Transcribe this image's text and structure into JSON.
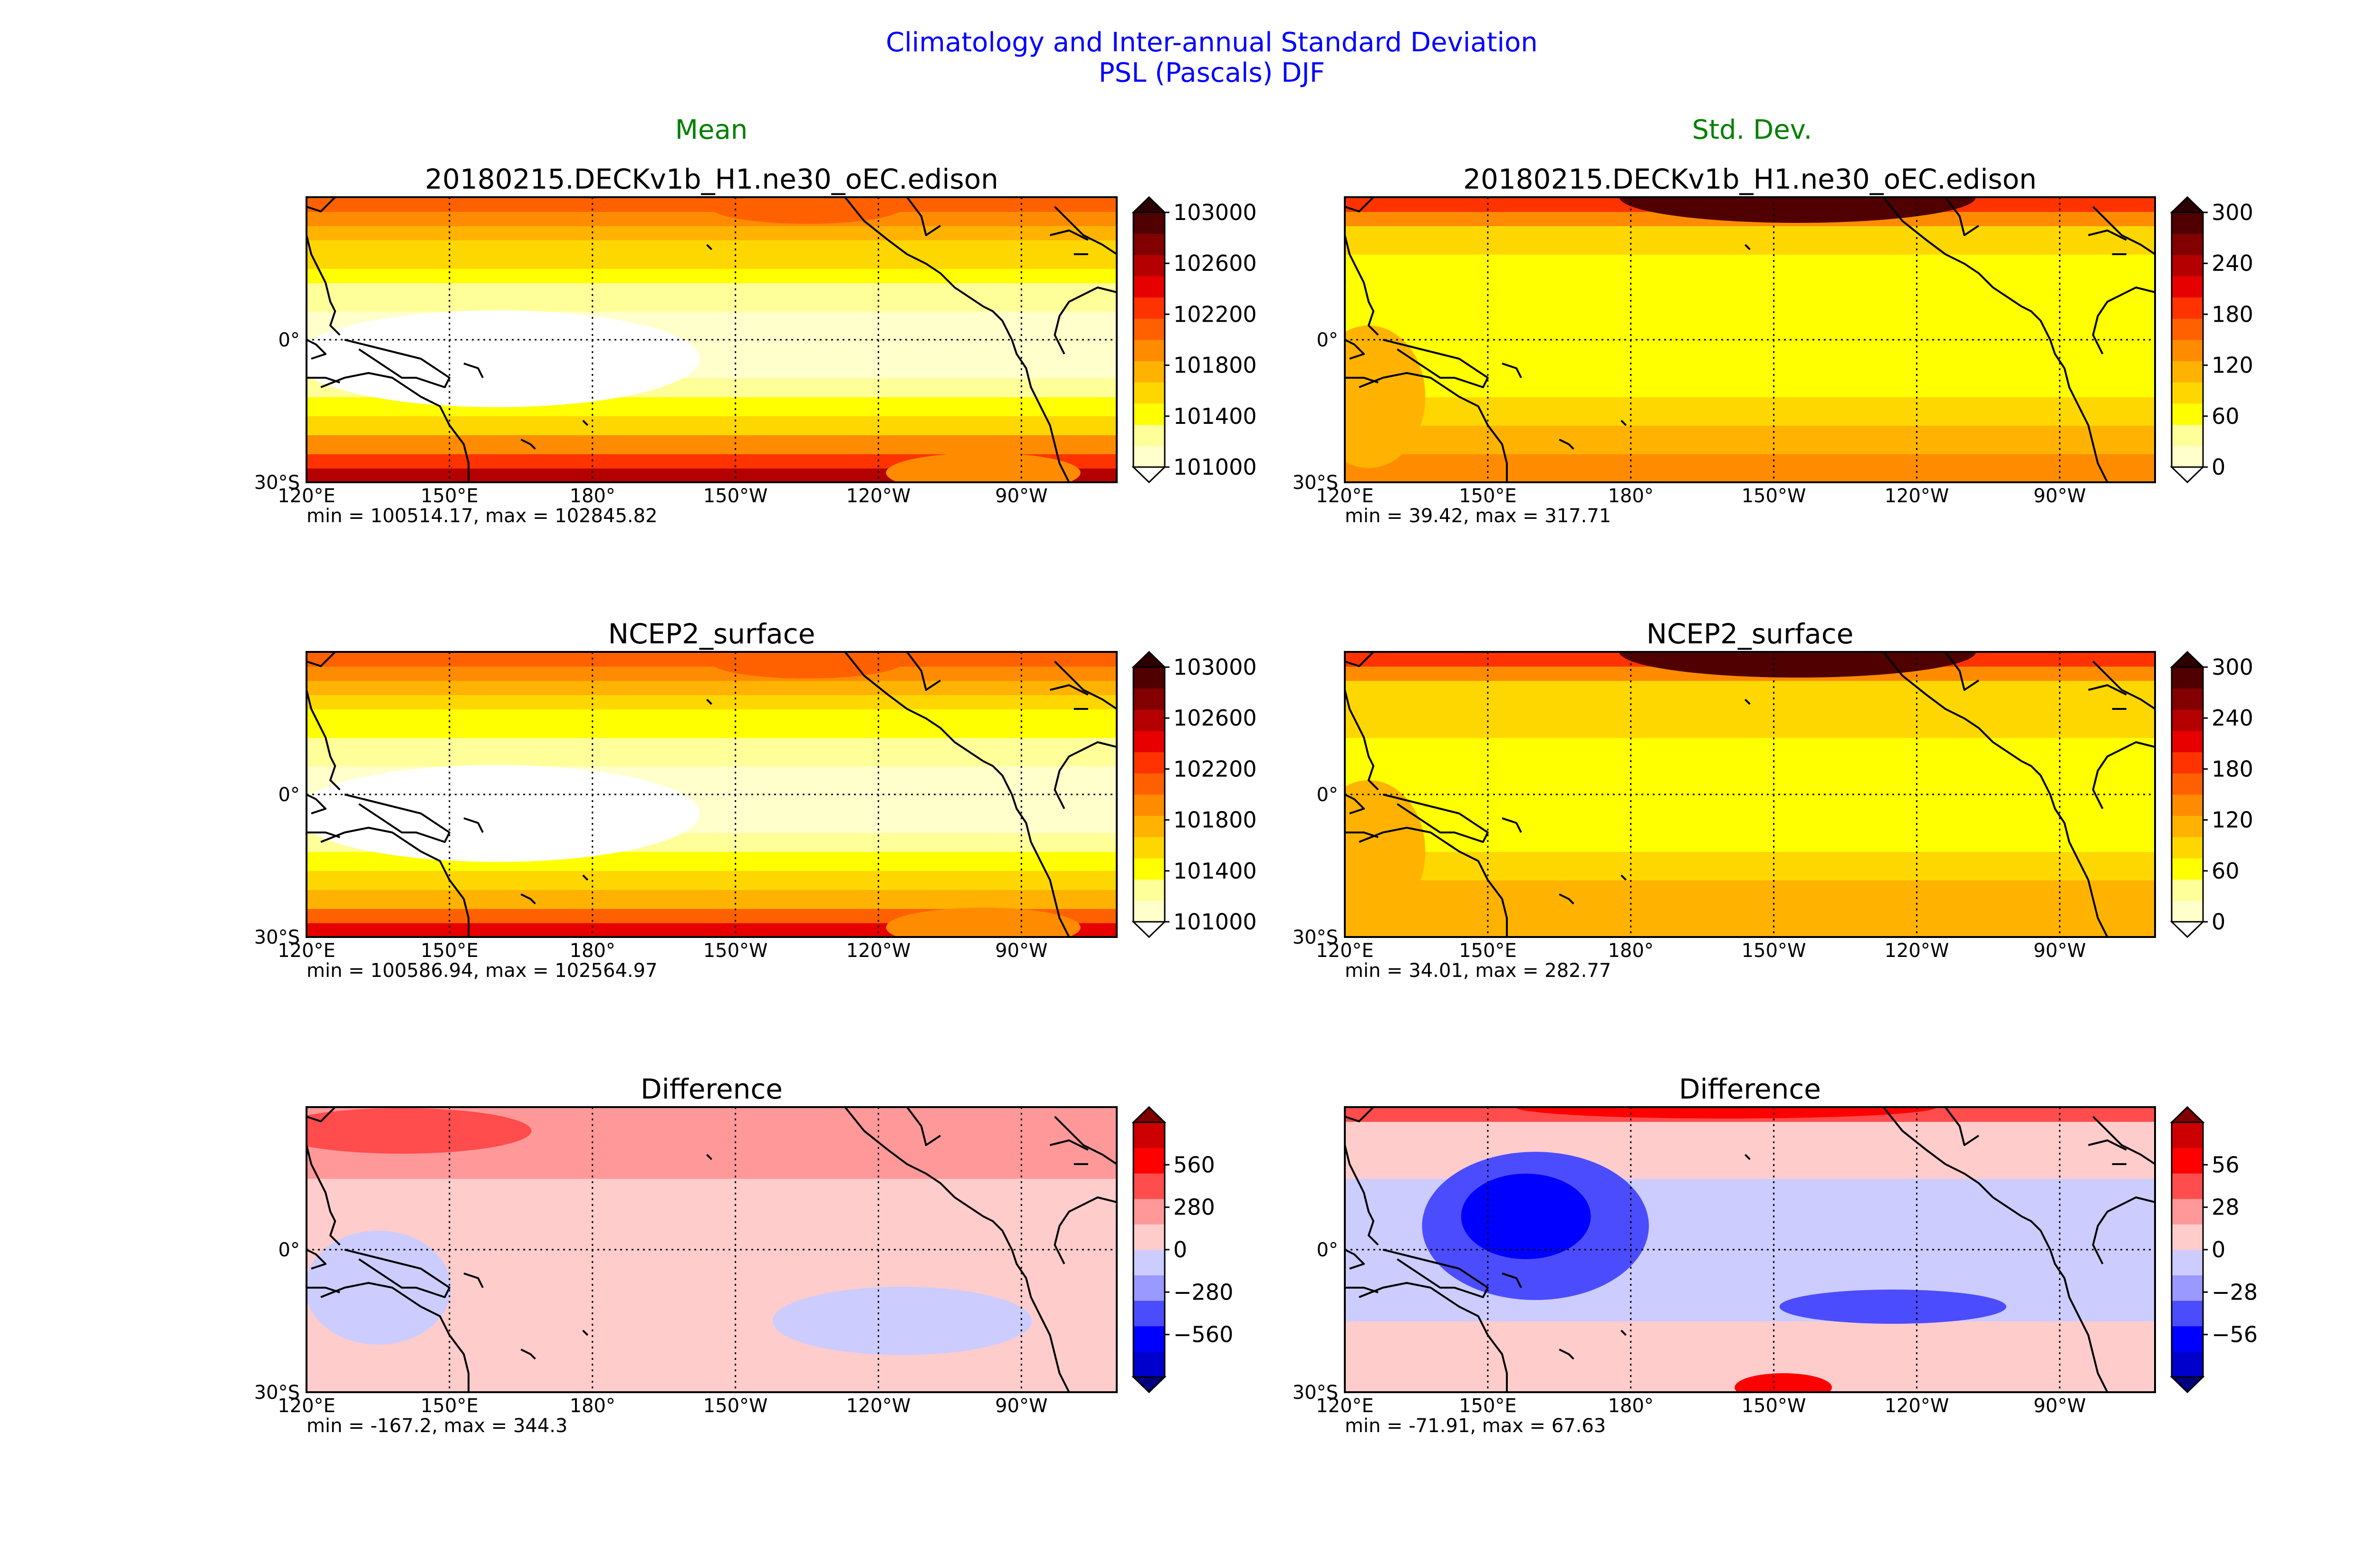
{
  "title_line1": "Climatology and Inter-annual Standard Deviation",
  "title_line2": "PSL (Pascals) DJF",
  "col_titles": [
    "Mean",
    "Std. Dev."
  ],
  "colors": {
    "mean_levels": [
      "#ffffff",
      "#ffffcc",
      "#ffff99",
      "#ffff00",
      "#ffd700",
      "#ffb300",
      "#ff8c00",
      "#ff6100",
      "#ff3300",
      "#e60000",
      "#b40000",
      "#820000",
      "#500000",
      "#2d0000"
    ],
    "diff_levels": [
      "#00007f",
      "#0000cc",
      "#0000ff",
      "#4c4cff",
      "#9999ff",
      "#ccccff",
      "#ffcccc",
      "#ff9999",
      "#ff4c4c",
      "#ff0000",
      "#cc0000",
      "#7f0000"
    ]
  },
  "chart_data": [
    {
      "type": "heatmap",
      "col": 0,
      "row": 0,
      "scheme": "mean",
      "title": "20180215.DECKv1b_H1.ne30_oEC.edison",
      "stats": "min = 100514.17, max = 102845.82",
      "xticks": [
        "120°E",
        "150°E",
        "180°",
        "150°W",
        "120°W",
        "90°W"
      ],
      "xtick_lon": [
        120,
        150,
        180,
        210,
        240,
        270
      ],
      "yticks": [
        "0°",
        "30°S"
      ],
      "ytick_lat": [
        0,
        -30
      ],
      "lon_range": [
        120,
        290
      ],
      "lat_range": [
        -30,
        30
      ],
      "cbar_ticks": [
        "103000",
        "102600",
        "102200",
        "101800",
        "101400",
        "101000"
      ],
      "levels": [
        101000,
        103000
      ],
      "bands_y": [
        [
          -30,
          10
        ],
        [
          -27,
          8
        ],
        [
          -24,
          6
        ],
        [
          -20,
          4
        ],
        [
          -16,
          3
        ],
        [
          -12,
          2
        ],
        [
          -8,
          1
        ],
        [
          -4,
          1
        ],
        [
          0,
          1
        ],
        [
          3,
          1
        ],
        [
          6,
          2
        ],
        [
          9,
          2
        ],
        [
          12,
          3
        ],
        [
          15,
          4
        ],
        [
          18,
          4
        ],
        [
          21,
          5
        ],
        [
          24,
          6
        ],
        [
          27,
          7
        ],
        [
          30,
          9
        ]
      ]
    },
    {
      "type": "heatmap",
      "col": 1,
      "row": 0,
      "scheme": "std",
      "title": "20180215.DECKv1b_H1.ne30_oEC.edison",
      "stats": "min = 39.42, max = 317.71",
      "xticks": [
        "120°E",
        "150°E",
        "180°",
        "150°W",
        "120°W",
        "90°W"
      ],
      "xtick_lon": [
        120,
        150,
        180,
        210,
        240,
        270
      ],
      "yticks": [
        "0°",
        "30°S"
      ],
      "ytick_lat": [
        0,
        -30
      ],
      "lon_range": [
        120,
        290
      ],
      "lat_range": [
        -30,
        30
      ],
      "cbar_ticks": [
        "300",
        "240",
        "180",
        "120",
        "60",
        "0"
      ],
      "levels": [
        0,
        300
      ],
      "bands_y": [
        [
          -30,
          6
        ],
        [
          -24,
          5
        ],
        [
          -18,
          4
        ],
        [
          -12,
          3
        ],
        [
          -6,
          3
        ],
        [
          0,
          3
        ],
        [
          6,
          3
        ],
        [
          12,
          3
        ],
        [
          18,
          4
        ],
        [
          24,
          6
        ],
        [
          27,
          8
        ],
        [
          30,
          11
        ]
      ]
    },
    {
      "type": "heatmap",
      "col": 0,
      "row": 1,
      "scheme": "mean",
      "title": "NCEP2_surface",
      "stats": "min = 100586.94, max = 102564.97",
      "xticks": [
        "120°E",
        "150°E",
        "180°",
        "150°W",
        "120°W",
        "90°W"
      ],
      "xtick_lon": [
        120,
        150,
        180,
        210,
        240,
        270
      ],
      "yticks": [
        "0°",
        "30°S"
      ],
      "ytick_lat": [
        0,
        -30
      ],
      "lon_range": [
        120,
        290
      ],
      "lat_range": [
        -30,
        30
      ],
      "cbar_ticks": [
        "103000",
        "102600",
        "102200",
        "101800",
        "101400",
        "101000"
      ],
      "levels": [
        101000,
        103000
      ],
      "bands_y": [
        [
          -30,
          9
        ],
        [
          -27,
          7
        ],
        [
          -24,
          5
        ],
        [
          -20,
          4
        ],
        [
          -16,
          3
        ],
        [
          -12,
          2
        ],
        [
          -8,
          1
        ],
        [
          -4,
          1
        ],
        [
          0,
          1
        ],
        [
          3,
          1
        ],
        [
          6,
          2
        ],
        [
          9,
          2
        ],
        [
          12,
          3
        ],
        [
          15,
          3
        ],
        [
          18,
          4
        ],
        [
          21,
          5
        ],
        [
          24,
          6
        ],
        [
          27,
          7
        ],
        [
          30,
          8
        ]
      ]
    },
    {
      "type": "heatmap",
      "col": 1,
      "row": 1,
      "scheme": "std",
      "title": "NCEP2_surface",
      "stats": "min = 34.01, max = 282.77",
      "xticks": [
        "120°E",
        "150°E",
        "180°",
        "150°W",
        "120°W",
        "90°W"
      ],
      "xtick_lon": [
        120,
        150,
        180,
        210,
        240,
        270
      ],
      "yticks": [
        "0°",
        "30°S"
      ],
      "ytick_lat": [
        0,
        -30
      ],
      "lon_range": [
        120,
        290
      ],
      "lat_range": [
        -30,
        30
      ],
      "cbar_ticks": [
        "300",
        "240",
        "180",
        "120",
        "60",
        "0"
      ],
      "levels": [
        0,
        300
      ],
      "bands_y": [
        [
          -30,
          5
        ],
        [
          -24,
          5
        ],
        [
          -18,
          4
        ],
        [
          -12,
          3
        ],
        [
          -6,
          3
        ],
        [
          0,
          3
        ],
        [
          6,
          3
        ],
        [
          12,
          4
        ],
        [
          18,
          4
        ],
        [
          24,
          6
        ],
        [
          27,
          8
        ],
        [
          30,
          10
        ]
      ]
    },
    {
      "type": "heatmap",
      "col": 0,
      "row": 2,
      "scheme": "diff",
      "title": "Difference",
      "stats": "min = -167.2, max = 344.3",
      "xticks": [
        "120°E",
        "150°E",
        "180°",
        "150°W",
        "120°W",
        "90°W"
      ],
      "xtick_lon": [
        120,
        150,
        180,
        210,
        240,
        270
      ],
      "yticks": [
        "0°",
        "30°S"
      ],
      "ytick_lat": [
        0,
        -30
      ],
      "lon_range": [
        120,
        290
      ],
      "lat_range": [
        -30,
        30
      ],
      "cbar_ticks": [
        "560",
        "280",
        "0",
        "−280",
        "−560"
      ],
      "levels": [
        -700,
        700
      ],
      "bands_y": [
        [
          -30,
          6
        ],
        [
          -15,
          6
        ],
        [
          0,
          6
        ],
        [
          15,
          7
        ],
        [
          30,
          8
        ]
      ]
    },
    {
      "type": "heatmap",
      "col": 1,
      "row": 2,
      "scheme": "diff",
      "title": "Difference",
      "stats": "min = -71.91, max = 67.63",
      "xticks": [
        "120°E",
        "150°E",
        "180°",
        "150°W",
        "120°W",
        "90°W"
      ],
      "xtick_lon": [
        120,
        150,
        180,
        210,
        240,
        270
      ],
      "yticks": [
        "0°",
        "30°S"
      ],
      "ytick_lat": [
        0,
        -30
      ],
      "lon_range": [
        120,
        290
      ],
      "lat_range": [
        -30,
        30
      ],
      "cbar_ticks": [
        "56",
        "28",
        "0",
        "−28",
        "−56"
      ],
      "levels": [
        -70,
        70
      ],
      "bands_y": [
        [
          -30,
          6
        ],
        [
          -15,
          5
        ],
        [
          0,
          5
        ],
        [
          15,
          6
        ],
        [
          27,
          8
        ],
        [
          30,
          9
        ]
      ]
    }
  ]
}
